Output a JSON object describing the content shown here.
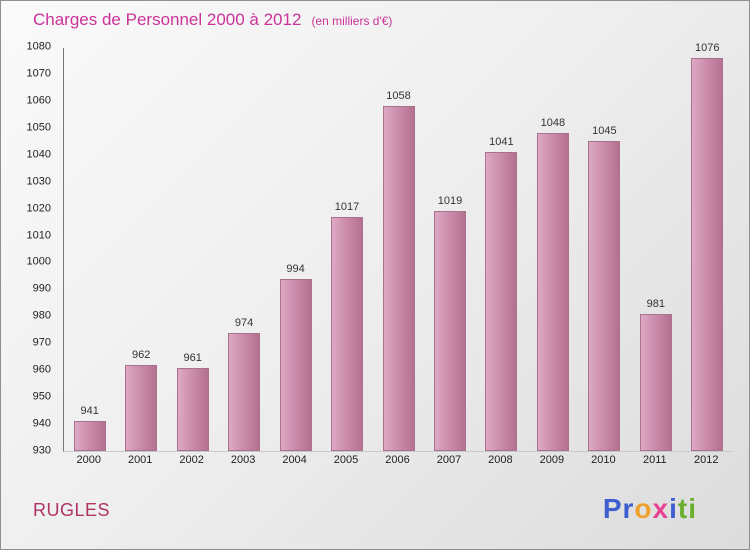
{
  "title": "Charges de Personnel 2000 à 2012",
  "subtitle": "(en milliers d'€)",
  "footer": {
    "left_label": "RUGLES",
    "logo_letters": [
      {
        "ch": "P",
        "color": "#3f5fd0"
      },
      {
        "ch": "r",
        "color": "#3f5fd0"
      },
      {
        "ch": "o",
        "color": "#f0a030"
      },
      {
        "ch": "x",
        "color": "#e84393"
      },
      {
        "ch": "i",
        "color": "#3f5fd0"
      },
      {
        "ch": "t",
        "color": "#6ab02e"
      },
      {
        "ch": "i",
        "color": "#6ab02e"
      }
    ]
  },
  "colors": {
    "title": "#cc3399",
    "footer_label": "#b03366",
    "bar_light": "#dda9c4",
    "bar_dark": "#b5718f",
    "axis": "#777777",
    "tick_text": "#222222",
    "value_text": "#333333"
  },
  "chart_data": {
    "type": "bar",
    "title": "Charges de Personnel 2000 à 2012",
    "subtitle": "(en milliers d'€)",
    "categories": [
      "2000",
      "2001",
      "2002",
      "2003",
      "2004",
      "2005",
      "2006",
      "2007",
      "2008",
      "2009",
      "2010",
      "2011",
      "2012"
    ],
    "values": [
      941,
      962,
      961,
      974,
      994,
      1017,
      1058,
      1019,
      1041,
      1048,
      1045,
      981,
      1076
    ],
    "xlabel": "",
    "ylabel": "",
    "ylim": [
      930,
      1080
    ],
    "ytick_step": 10,
    "grid": false,
    "legend": false,
    "value_labels": true,
    "bar_color": "#c688a8"
  }
}
